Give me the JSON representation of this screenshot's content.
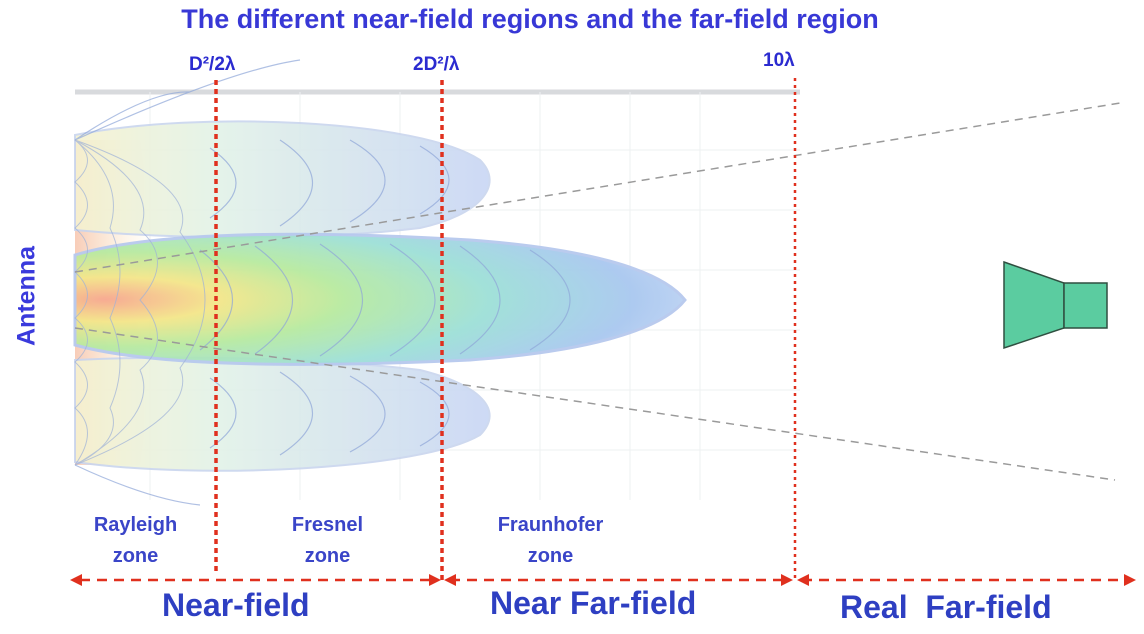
{
  "title": "The different near-field regions and the far-field region",
  "axis_label": "Antenna",
  "boundaries": {
    "b1": "D²/2λ",
    "b2": "2D²/λ",
    "b3": "10λ"
  },
  "zones": {
    "rayleigh": {
      "line1": "Rayleigh",
      "line2": "zone"
    },
    "fresnel": {
      "line1": "Fresnel",
      "line2": "zone"
    },
    "fraunhofer": {
      "line1": "Fraunhofer",
      "line2": "zone"
    }
  },
  "regions": {
    "near_field": "Near-field",
    "near_far_field": "Near Far-field",
    "real_far_field": "Real  Far-field"
  },
  "colors": {
    "title": "#3838d6",
    "boundary_line": "#e0301e",
    "arrow": "#e0301e",
    "receiver_horn": "#5bcca0",
    "beam_dash": "#9a9a9a"
  },
  "icons": {
    "receiver": "horn-antenna-icon"
  }
}
